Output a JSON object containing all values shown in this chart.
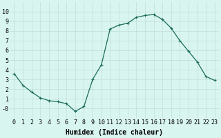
{
  "x": [
    0,
    1,
    2,
    3,
    4,
    5,
    6,
    7,
    8,
    9,
    10,
    11,
    12,
    13,
    14,
    15,
    16,
    17,
    18,
    19,
    20,
    21,
    22,
    23
  ],
  "y": [
    3.6,
    2.4,
    1.7,
    1.1,
    0.8,
    0.7,
    0.5,
    -0.3,
    0.2,
    3.0,
    4.5,
    8.2,
    8.6,
    8.8,
    9.4,
    9.6,
    9.7,
    9.2,
    8.3,
    7.0,
    5.9,
    4.8,
    3.3,
    2.9
  ],
  "line_color": "#1a6b5a",
  "marker": "+",
  "marker_size": 3,
  "marker_linewidth": 0.8,
  "bg_color": "#d9f5f0",
  "grid_color": "#c0ddd8",
  "xlabel": "Humidex (Indice chaleur)",
  "xlabel_fontsize": 7,
  "tick_fontsize": 6,
  "ylim": [
    -1,
    11
  ],
  "xlim": [
    -0.5,
    23.5
  ],
  "yticks": [
    0,
    1,
    2,
    3,
    4,
    5,
    6,
    7,
    8,
    9,
    10
  ],
  "ytick_labels": [
    "-0",
    "1",
    "2",
    "3",
    "4",
    "5",
    "6",
    "7",
    "8",
    "9",
    "10"
  ],
  "xticks": [
    0,
    1,
    2,
    3,
    4,
    5,
    6,
    7,
    8,
    9,
    10,
    11,
    12,
    13,
    14,
    15,
    16,
    17,
    18,
    19,
    20,
    21,
    22,
    23
  ],
  "xtick_labels": [
    "0",
    "1",
    "2",
    "3",
    "4",
    "5",
    "6",
    "7",
    "8",
    "9",
    "10",
    "11",
    "12",
    "13",
    "14",
    "15",
    "16",
    "17",
    "18",
    "19",
    "20",
    "21",
    "22",
    "23"
  ],
  "linewidth": 0.9
}
